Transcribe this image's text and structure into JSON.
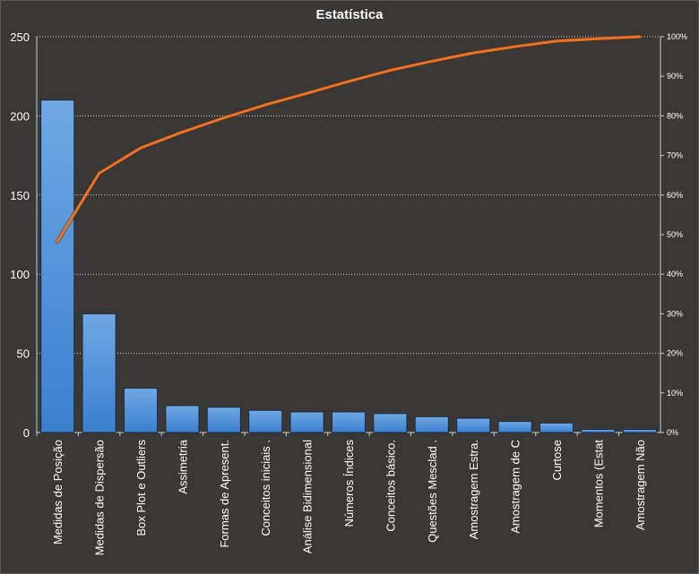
{
  "chart_data": {
    "type": "bar",
    "title": "Estatística",
    "categories": [
      "Medidas de Posição",
      "Medidas de Dispersão",
      "Box Plot e Outliers",
      "Assimetria",
      "Formas de Apresent.",
      "Conceitos iniciais .",
      "Análise Bidimensional",
      "Números Índices",
      "Conceitos básico.",
      "Questões Mesclad .",
      "Amostragem Estra.",
      "Amostragem de C",
      "Curtose",
      "Momentos  (Estat",
      "Amostragem Não"
    ],
    "series": [
      {
        "type": "bar",
        "axis": "left",
        "values": [
          210,
          75,
          28,
          17,
          16,
          14,
          13,
          13,
          12,
          10,
          9,
          7,
          6,
          2,
          2
        ],
        "color": "#4a90d9"
      },
      {
        "type": "line",
        "axis": "right",
        "values": [
          48.3,
          65.5,
          71.9,
          75.9,
          79.5,
          82.8,
          85.7,
          88.7,
          91.5,
          93.8,
          95.9,
          97.5,
          98.9,
          99.5,
          100
        ],
        "color": "#e8742a"
      }
    ],
    "ylim": [
      0,
      250
    ],
    "yticks": [
      0,
      50,
      100,
      150,
      200,
      250
    ],
    "y2lim": [
      0,
      100
    ],
    "y2ticks": [
      "0%",
      "10%",
      "20%",
      "30%",
      "40%",
      "50%",
      "60%",
      "70%",
      "80%",
      "90%",
      "100%"
    ],
    "grid": true,
    "legend": "none"
  }
}
